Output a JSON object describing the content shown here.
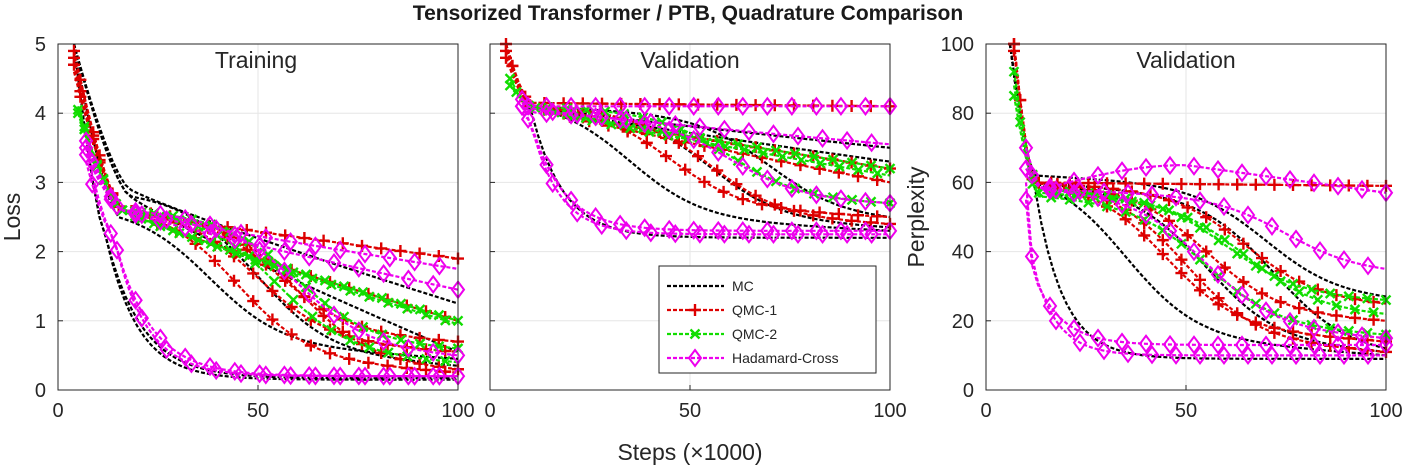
{
  "chart_data": {
    "type": "line",
    "title": "Tensorized Transformer / PTB, Quadrature Comparison",
    "xlabel": "Steps (×1000)",
    "legend": {
      "placement": "bottom-right",
      "entries": [
        {
          "name": "MC",
          "color": "#000000",
          "marker": "none"
        },
        {
          "name": "QMC-1",
          "color": "#dd0000",
          "marker": "plus"
        },
        {
          "name": "QMC-2",
          "color": "#11dd00",
          "marker": "x"
        },
        {
          "name": "Hadamard-Cross",
          "color": "#ee00ee",
          "marker": "diamond"
        }
      ]
    },
    "panels": [
      {
        "title": "Training",
        "ylabel": "Loss",
        "xlim": [
          0,
          100
        ],
        "ylim": [
          0,
          5
        ],
        "xticks": [
          "0",
          "50",
          "100"
        ],
        "yticks": [
          "0",
          "1",
          "2",
          "3",
          "4",
          "5"
        ],
        "grid": true,
        "series": [
          {
            "name": "MC",
            "runs": [
              {
                "start": [
                  4,
                  5.0
                ],
                "knee": [
                  18,
                  2.9
                ],
                "end": 1.25,
                "shape": "linear"
              },
              {
                "start": [
                  4,
                  5.0
                ],
                "knee": [
                  18,
                  2.8
                ],
                "end": 0.55,
                "shape": "linear"
              },
              {
                "start": [
                  4,
                  5.0
                ],
                "knee": [
                  18,
                  2.8
                ],
                "end": 0.35,
                "shape": "sig",
                "mid": 50
              },
              {
                "start": [
                  4,
                  5.0
                ],
                "knee": [
                  15,
                  2.5
                ],
                "end": 0.45,
                "shape": "sig",
                "mid": 38
              },
              {
                "start": [
                  4,
                  5.0
                ],
                "knee": [
                  12,
                  2.2
                ],
                "end": 0.17,
                "shape": "exp",
                "tau": 9
              },
              {
                "start": [
                  4,
                  5.0
                ],
                "knee": [
                  12,
                  2.2
                ],
                "end": 0.15,
                "shape": "exp",
                "tau": 8
              }
            ]
          },
          {
            "name": "QMC-1",
            "runs": [
              {
                "start": [
                  4,
                  4.7
                ],
                "knee": [
                  16,
                  2.6
                ],
                "end": 1.9,
                "shape": "linear"
              },
              {
                "start": [
                  4,
                  4.9
                ],
                "knee": [
                  16,
                  2.6
                ],
                "end": 1.0,
                "shape": "linear"
              },
              {
                "start": [
                  4,
                  4.8
                ],
                "knee": [
                  16,
                  2.6
                ],
                "end": 0.7,
                "shape": "sig",
                "mid": 55
              },
              {
                "start": [
                  4,
                  4.6
                ],
                "knee": [
                  16,
                  2.6
                ],
                "end": 0.25,
                "shape": "sig",
                "mid": 45
              },
              {
                "start": [
                  4,
                  4.9
                ],
                "knee": [
                  16,
                  2.6
                ],
                "end": 0.3,
                "shape": "sig",
                "mid": 60
              },
              {
                "start": [
                  4,
                  4.7
                ],
                "knee": [
                  16,
                  2.6
                ],
                "end": 0.55,
                "shape": "sig",
                "mid": 50
              }
            ]
          },
          {
            "name": "QMC-2",
            "runs": [
              {
                "start": [
                  5,
                  4.05
                ],
                "knee": [
                  16,
                  2.6
                ],
                "end": 1.0,
                "shape": "linear"
              },
              {
                "start": [
                  5,
                  4.1
                ],
                "knee": [
                  16,
                  2.6
                ],
                "end": 0.95,
                "shape": "linear"
              },
              {
                "start": [
                  5,
                  4.0
                ],
                "knee": [
                  16,
                  2.6
                ],
                "end": 0.6,
                "shape": "sig",
                "mid": 60
              },
              {
                "start": [
                  5,
                  4.05
                ],
                "knee": [
                  16,
                  2.6
                ],
                "end": 0.4,
                "shape": "sig",
                "mid": 55
              }
            ]
          },
          {
            "name": "Hadamard-Cross",
            "runs": [
              {
                "start": [
                  7,
                  3.6
                ],
                "knee": [
                  16,
                  2.6
                ],
                "end": 1.45,
                "shape": "linear"
              },
              {
                "start": [
                  7,
                  3.5
                ],
                "knee": [
                  16,
                  2.6
                ],
                "end": 1.75,
                "shape": "linear"
              },
              {
                "start": [
                  7,
                  3.4
                ],
                "knee": [
                  16,
                  2.6
                ],
                "end": 0.5,
                "shape": "sig",
                "mid": 60
              },
              {
                "start": [
                  7,
                  3.3
                ],
                "knee": [
                  14,
                  2.2
                ],
                "end": 0.2,
                "shape": "exp",
                "tau": 8
              },
              {
                "start": [
                  7,
                  3.5
                ],
                "knee": [
                  14,
                  2.2
                ],
                "end": 0.2,
                "shape": "exp",
                "tau": 9
              }
            ]
          }
        ]
      },
      {
        "title": "Validation",
        "ylabel": "",
        "xlim": [
          0,
          100
        ],
        "ylim": [
          0,
          5
        ],
        "xticks": [
          "0",
          "50",
          "100"
        ],
        "yticks": [],
        "grid": true,
        "series": [
          {
            "name": "MC",
            "runs": [
              {
                "start": [
                  4,
                  5.0
                ],
                "knee": [
                  10,
                  4.1
                ],
                "end": 2.2,
                "shape": "exp",
                "tau": 8
              },
              {
                "start": [
                  4,
                  5.0
                ],
                "knee": [
                  10,
                  4.1
                ],
                "end": 2.3,
                "shape": "sig",
                "mid": 35
              },
              {
                "start": [
                  4,
                  5.0
                ],
                "knee": [
                  10,
                  4.1
                ],
                "end": 2.35,
                "shape": "sig",
                "mid": 55
              },
              {
                "start": [
                  4,
                  5.0
                ],
                "knee": [
                  10,
                  4.1
                ],
                "end": 3.3,
                "shape": "linear"
              },
              {
                "start": [
                  4,
                  5.0
                ],
                "knee": [
                  10,
                  4.1
                ],
                "end": 3.5,
                "shape": "linear"
              },
              {
                "start": [
                  4,
                  5.0
                ],
                "knee": [
                  10,
                  4.1
                ],
                "end": 2.5,
                "shape": "sig",
                "mid": 70
              }
            ]
          },
          {
            "name": "QMC-1",
            "runs": [
              {
                "start": [
                  4,
                  5.0
                ],
                "knee": [
                  10,
                  4.15
                ],
                "end": 4.1,
                "shape": "linear"
              },
              {
                "start": [
                  4,
                  5.0
                ],
                "knee": [
                  10,
                  4.1
                ],
                "end": 3.0,
                "shape": "linear"
              },
              {
                "start": [
                  4,
                  4.9
                ],
                "knee": [
                  10,
                  4.1
                ],
                "end": 2.4,
                "shape": "sig",
                "mid": 55
              },
              {
                "start": [
                  4,
                  5.0
                ],
                "knee": [
                  10,
                  4.1
                ],
                "end": 2.5,
                "shape": "sig",
                "mid": 45
              },
              {
                "start": [
                  4,
                  4.8
                ],
                "knee": [
                  10,
                  4.1
                ],
                "end": 3.2,
                "shape": "linear"
              }
            ]
          },
          {
            "name": "QMC-2",
            "runs": [
              {
                "start": [
                  5,
                  4.5
                ],
                "knee": [
                  10,
                  4.1
                ],
                "end": 3.2,
                "shape": "linear"
              },
              {
                "start": [
                  5,
                  4.45
                ],
                "knee": [
                  10,
                  4.1
                ],
                "end": 3.1,
                "shape": "linear"
              },
              {
                "start": [
                  5,
                  4.4
                ],
                "knee": [
                  10,
                  4.1
                ],
                "end": 2.7,
                "shape": "sig",
                "mid": 60
              }
            ]
          },
          {
            "name": "Hadamard-Cross",
            "runs": [
              {
                "start": [
                  8,
                  4.2
                ],
                "knee": [
                  12,
                  4.1
                ],
                "end": 4.1,
                "shape": "linear"
              },
              {
                "start": [
                  8,
                  4.15
                ],
                "knee": [
                  12,
                  4.05
                ],
                "end": 3.55,
                "shape": "linear"
              },
              {
                "start": [
                  8,
                  4.1
                ],
                "knee": [
                  12,
                  4.0
                ],
                "end": 2.7,
                "shape": "sig",
                "mid": 60
              },
              {
                "start": [
                  8,
                  4.0
                ],
                "knee": [
                  10,
                  3.9
                ],
                "end": 2.25,
                "shape": "exp",
                "tau": 7
              },
              {
                "start": [
                  8,
                  4.1
                ],
                "knee": [
                  10,
                  3.9
                ],
                "end": 2.3,
                "shape": "exp",
                "tau": 8
              }
            ]
          }
        ]
      },
      {
        "title": "Validation",
        "ylabel": "Perplexity",
        "xlim": [
          0,
          100
        ],
        "ylim": [
          0,
          100
        ],
        "xticks": [
          "0",
          "50",
          "100"
        ],
        "yticks": [
          "0",
          "20",
          "40",
          "60",
          "80",
          "100"
        ],
        "grid": true,
        "series": [
          {
            "name": "MC",
            "runs": [
              {
                "start": [
                  6,
                  100
                ],
                "knee": [
                  12,
                  60
                ],
                "end": 9,
                "shape": "exp",
                "tau": 7
              },
              {
                "start": [
                  6,
                  100
                ],
                "knee": [
                  12,
                  60
                ],
                "end": 10,
                "shape": "sig",
                "mid": 35
              },
              {
                "start": [
                  6,
                  100
                ],
                "knee": [
                  12,
                  60
                ],
                "end": 11,
                "shape": "sig",
                "mid": 55
              },
              {
                "start": [
                  6,
                  100
                ],
                "knee": [
                  12,
                  62
                ],
                "end": 27,
                "shape": "sig",
                "mid": 70
              },
              {
                "start": [
                  6,
                  100
                ],
                "knee": [
                  12,
                  60
                ],
                "end": 12,
                "shape": "sig",
                "mid": 72
              }
            ]
          },
          {
            "name": "QMC-1",
            "runs": [
              {
                "start": [
                  7,
                  100
                ],
                "knee": [
                  12,
                  60
                ],
                "end": 59,
                "shape": "linear"
              },
              {
                "start": [
                  7,
                  100
                ],
                "knee": [
                  12,
                  60
                ],
                "end": 20,
                "shape": "sig",
                "mid": 55
              },
              {
                "start": [
                  7,
                  100
                ],
                "knee": [
                  12,
                  60
                ],
                "end": 11,
                "shape": "sig",
                "mid": 50
              },
              {
                "start": [
                  7,
                  100
                ],
                "knee": [
                  12,
                  60
                ],
                "end": 25,
                "shape": "sig",
                "mid": 65
              },
              {
                "start": [
                  7,
                  98
                ],
                "knee": [
                  12,
                  60
                ],
                "end": 14,
                "shape": "sig",
                "mid": 45
              }
            ]
          },
          {
            "name": "QMC-2",
            "runs": [
              {
                "start": [
                  7,
                  92
                ],
                "knee": [
                  13,
                  58
                ],
                "end": 26,
                "shape": "sig",
                "mid": 60
              },
              {
                "start": [
                  7,
                  88
                ],
                "knee": [
                  13,
                  57
                ],
                "end": 22,
                "shape": "sig",
                "mid": 65
              },
              {
                "start": [
                  7,
                  85
                ],
                "knee": [
                  13,
                  56
                ],
                "end": 16,
                "shape": "sig",
                "mid": 55
              }
            ]
          },
          {
            "name": "Hadamard-Cross",
            "runs": [
              {
                "start": [
                  10,
                  70
                ],
                "knee": [
                  14,
                  58
                ],
                "end": 57,
                "shape": "bump",
                "peak": 65,
                "peakx": 50
              },
              {
                "start": [
                  10,
                  66
                ],
                "knee": [
                  14,
                  58
                ],
                "end": 35,
                "shape": "sig",
                "mid": 75
              },
              {
                "start": [
                  10,
                  64
                ],
                "knee": [
                  14,
                  58
                ],
                "end": 15,
                "shape": "sig",
                "mid": 55
              },
              {
                "start": [
                  10,
                  60
                ],
                "knee": [
                  12,
                  35
                ],
                "end": 10,
                "shape": "exp",
                "tau": 6
              },
              {
                "start": [
                  10,
                  55
                ],
                "knee": [
                  12,
                  33
                ],
                "end": 13,
                "shape": "exp",
                "tau": 7
              }
            ]
          }
        ]
      }
    ]
  }
}
